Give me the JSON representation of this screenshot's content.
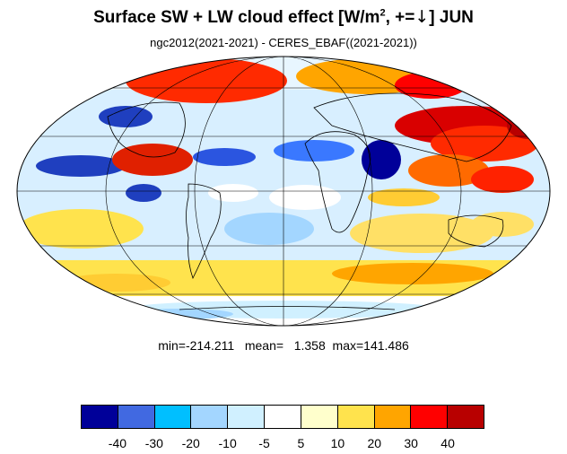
{
  "title": {
    "main": "Surface SW + LW cloud effect [W/m",
    "sup": "2",
    "mid": ", +=",
    "arrow": "↓",
    "end": "]  JUN"
  },
  "subtitle": "ngc2012(2021-2021) - CERES_EBAF((2021-2021))",
  "stats": {
    "min_label": "min=",
    "min": "-214.211",
    "mean_label": "mean=",
    "mean": "1.358",
    "max_label": "max=",
    "max": "141.486"
  },
  "colorbar": {
    "colors": [
      "#000099",
      "#4169e1",
      "#00bfff",
      "#a3d6ff",
      "#d0f0ff",
      "#ffffff",
      "#ffffcc",
      "#ffe34d",
      "#ffa500",
      "#ff0000",
      "#b80000"
    ],
    "labels": [
      "-40",
      "-30",
      "-20",
      "-10",
      "-5",
      "5",
      "10",
      "20",
      "30",
      "40"
    ]
  },
  "map": {
    "projection": "mollweide",
    "graticule": true,
    "coastlines": true,
    "field": "cloud effect difference (W/m2)"
  }
}
